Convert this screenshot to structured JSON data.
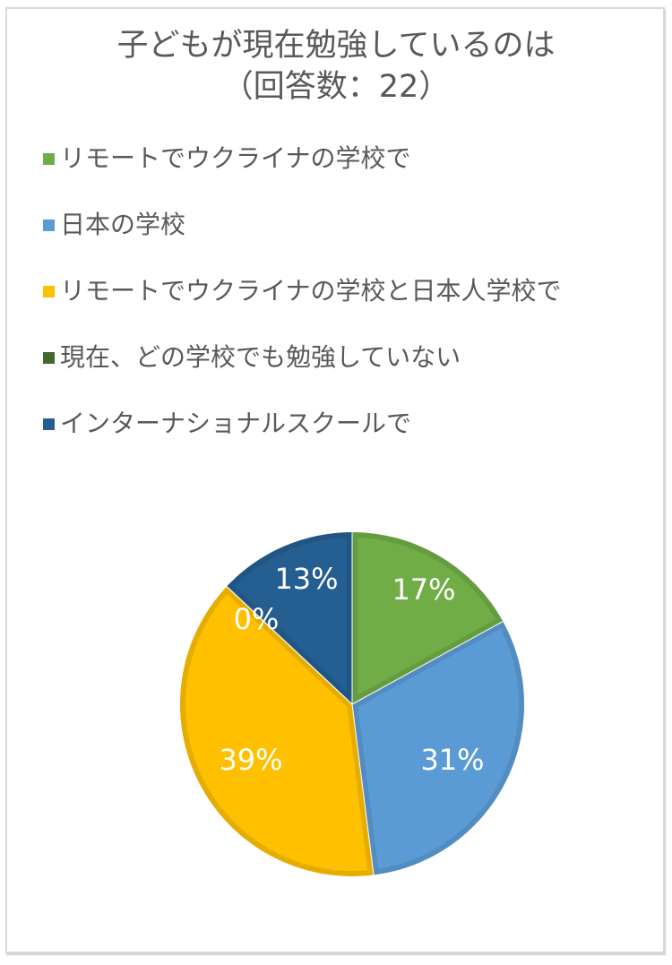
{
  "chart": {
    "title_line1": "子どもが現在勉強しているのは",
    "title_line2": "（回答数：22）"
  },
  "legend": [
    {
      "label": "リモートでウクライナの学校で",
      "color": "#70AD47"
    },
    {
      "label": "日本の学校",
      "color": "#5B9BD5"
    },
    {
      "label": "リモートでウクライナの学校と日本人学校で",
      "color": "#FFC000"
    },
    {
      "label": "現在、どの学校でも勉強していない",
      "color": "#43682B"
    },
    {
      "label": "インターナショナルスクールで",
      "color": "#255E91"
    }
  ],
  "slices": [
    {
      "label": "17%",
      "color": "#70AD47",
      "border": "#659C40"
    },
    {
      "label": "31%",
      "color": "#5B9BD5",
      "border": "#538CC0"
    },
    {
      "label": "39%",
      "color": "#FFC000",
      "border": "#E6AD00"
    },
    {
      "label": "0%",
      "color": "#43682B",
      "border": "#3C5E27"
    },
    {
      "label": "13%",
      "color": "#255E91",
      "border": "#215583"
    }
  ],
  "chart_data": {
    "type": "pie",
    "title": "子どもが現在勉強しているのは（回答数：22）",
    "categories": [
      "リモートでウクライナの学校で",
      "日本の学校",
      "リモートでウクライナの学校と日本人学校で",
      "現在、どの学校でも勉強していない",
      "インターナショナルスクールで"
    ],
    "values": [
      17,
      31,
      39,
      0,
      13
    ],
    "unit": "%",
    "colors": [
      "#70AD47",
      "#5B9BD5",
      "#FFC000",
      "#43682B",
      "#255E91"
    ],
    "legend_position": "top",
    "data_labels": [
      "17%",
      "31%",
      "39%",
      "0%",
      "13%"
    ],
    "start_angle": 0,
    "direction": "clockwise"
  }
}
